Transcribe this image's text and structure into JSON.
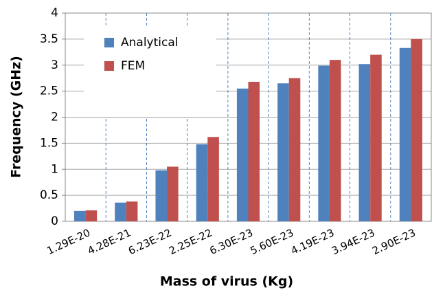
{
  "chart_data": {
    "type": "bar",
    "x_label": "Mass of virus (Kg)",
    "y_label": "Frequency (GHz)",
    "categories": [
      "1.29E-20",
      "4.28E-21",
      "6.23E-22",
      "2.25E-22",
      "6.30E-23",
      "5.60E-23",
      "4.19E-23",
      "3.94E-23",
      "2.90E-23"
    ],
    "series": [
      {
        "name": "Analytical",
        "color": "#4f81bd",
        "values": [
          0.2,
          0.36,
          0.98,
          1.48,
          2.55,
          2.65,
          2.99,
          3.02,
          3.33
        ]
      },
      {
        "name": "FEM",
        "color": "#c0504d",
        "values": [
          0.21,
          0.38,
          1.05,
          1.62,
          2.68,
          2.75,
          3.1,
          3.2,
          3.5
        ]
      }
    ],
    "ylim": [
      0,
      4
    ],
    "yticks": [
      0,
      0.5,
      1,
      1.5,
      2,
      2.5,
      3,
      3.5,
      4
    ],
    "grid": true,
    "legend": "upper left"
  }
}
